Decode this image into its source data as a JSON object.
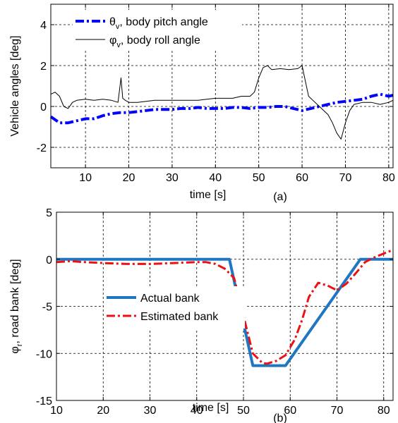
{
  "chart_data": [
    {
      "id": "a",
      "type": "line",
      "xlabel": "time [s]",
      "ylabel": "Vehicle angles [deg]",
      "panel_label": "(a)",
      "xlim": [
        2,
        81
      ],
      "ylim": [
        -3,
        5
      ],
      "xticks": [
        10,
        20,
        30,
        40,
        50,
        60,
        70,
        80
      ],
      "yticks": [
        -2,
        0,
        2,
        4
      ],
      "grid": true,
      "legend_position": "top-left",
      "series": [
        {
          "key": "pitch",
          "name": "θv, body pitch angle",
          "name_main": "θ",
          "name_sub": "v",
          "name_rest": ", body pitch angle",
          "color": "#0000ff",
          "style": "dash-dot",
          "x": [
            2,
            4,
            6,
            8,
            10,
            12,
            14,
            16,
            18,
            20,
            22,
            24,
            26,
            28,
            30,
            32,
            34,
            36,
            38,
            40,
            42,
            44,
            46,
            48,
            50,
            52,
            54,
            56,
            58,
            60,
            62,
            64,
            66,
            68,
            70,
            72,
            74,
            76,
            78,
            80,
            81
          ],
          "y": [
            -0.5,
            -0.8,
            -0.8,
            -0.7,
            -0.6,
            -0.6,
            -0.45,
            -0.35,
            -0.3,
            -0.3,
            -0.25,
            -0.2,
            -0.15,
            -0.15,
            -0.15,
            -0.1,
            -0.1,
            -0.05,
            -0.1,
            -0.1,
            -0.1,
            -0.05,
            -0.05,
            -0.1,
            -0.05,
            -0.05,
            0.0,
            0.0,
            -0.1,
            -0.2,
            -0.1,
            0.0,
            0.1,
            0.2,
            0.25,
            0.3,
            0.35,
            0.5,
            0.6,
            0.5,
            0.55
          ]
        },
        {
          "key": "roll",
          "name": "φv, body roll angle",
          "name_main": "φ",
          "name_sub": "v",
          "name_rest": ", body roll angle",
          "color": "#000000",
          "style": "solid",
          "x": [
            2,
            3,
            4,
            5,
            6,
            7,
            8,
            10,
            12,
            14,
            16,
            17.5,
            18.2,
            18.6,
            19.2,
            20,
            22,
            24,
            26,
            28,
            30,
            32,
            34,
            36,
            38,
            40,
            42,
            44,
            46,
            48,
            49,
            50,
            51,
            52,
            53,
            55,
            57,
            59,
            60,
            60.5,
            61.5,
            62.5,
            64,
            66,
            67,
            68,
            69,
            70,
            71,
            72,
            74,
            76,
            78,
            80,
            81
          ],
          "y": [
            0.6,
            0.7,
            0.5,
            0.0,
            -0.1,
            0.2,
            0.3,
            0.35,
            0.3,
            0.35,
            0.3,
            0.2,
            1.4,
            0.4,
            0.3,
            0.2,
            0.2,
            0.25,
            0.3,
            0.3,
            0.3,
            0.3,
            0.3,
            0.3,
            0.35,
            0.4,
            0.4,
            0.4,
            0.5,
            0.5,
            0.7,
            1.4,
            1.9,
            2.0,
            1.8,
            1.85,
            1.8,
            1.85,
            2.0,
            1.5,
            0.5,
            0.3,
            0.0,
            -0.4,
            -0.8,
            -1.3,
            -1.6,
            -0.8,
            -0.2,
            0.1,
            0.2,
            0.2,
            0.1,
            0.2,
            0.3
          ]
        }
      ]
    },
    {
      "id": "b",
      "type": "line",
      "xlabel": "time [s]",
      "ylabel": "φr, road bank [deg]",
      "ylabel_main": "φ",
      "ylabel_sub": "r",
      "ylabel_rest": ", road bank [deg]",
      "panel_label": "(b)",
      "xlim": [
        10,
        82
      ],
      "ylim": [
        -15,
        5
      ],
      "xticks": [
        10,
        20,
        30,
        40,
        50,
        60,
        70,
        80
      ],
      "yticks": [
        -15,
        -10,
        -5,
        0,
        5
      ],
      "grid": true,
      "legend_position": "center-left",
      "series": [
        {
          "key": "actual",
          "name": "Actual bank",
          "color": "#1f77c4",
          "style": "solid",
          "x": [
            10,
            47,
            52,
            59,
            75,
            82
          ],
          "y": [
            0,
            0,
            -11.3,
            -11.3,
            0,
            0
          ]
        },
        {
          "key": "estimated",
          "name": "Estimated bank",
          "color": "#ee1111",
          "style": "dash-dot",
          "x": [
            10,
            13,
            16,
            20,
            25,
            30,
            35,
            40,
            42,
            44,
            46,
            48,
            50,
            52,
            54,
            55,
            57,
            59,
            61,
            62.5,
            64,
            66,
            68,
            70,
            72,
            74,
            76,
            78,
            80,
            82
          ],
          "y": [
            -0.3,
            -0.2,
            -0.3,
            -0.4,
            -0.5,
            -0.5,
            -0.4,
            -0.3,
            -0.3,
            -0.5,
            -1.0,
            -2.0,
            -6.0,
            -10.0,
            -11.0,
            -11.1,
            -10.8,
            -10.2,
            -8.5,
            -6.5,
            -4.0,
            -2.5,
            -2.8,
            -3.3,
            -2.6,
            -1.5,
            -0.3,
            0.2,
            0.6,
            1.0
          ]
        }
      ]
    }
  ]
}
